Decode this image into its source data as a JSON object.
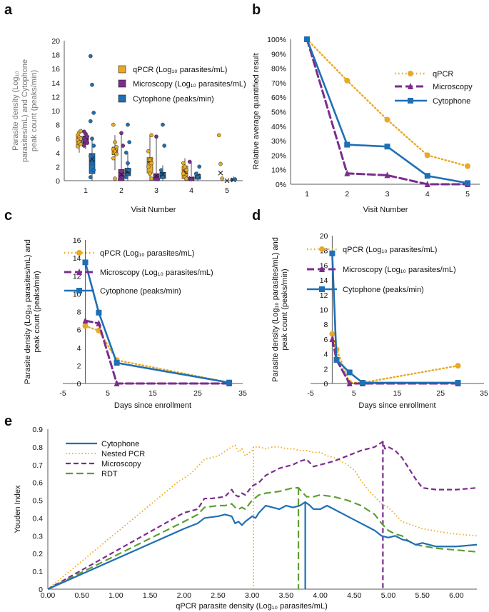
{
  "colors": {
    "qpcr": "#E8A925",
    "microscopy": "#7B2D8E",
    "cytophone": "#1F6FB5",
    "nested": "#F0A81E",
    "rdt": "#5E9E32",
    "axis": "#595959",
    "grid": "#cfcfcf"
  },
  "panels": {
    "a": "a",
    "b": "b",
    "c": "c",
    "d": "d",
    "e": "e"
  },
  "chart_data": [
    {
      "id": "a",
      "type": "scatter",
      "title": "",
      "xlabel": "Visit Number",
      "ylabel_lines": [
        "Parasite density (Log₁₀",
        "parasites/mL) and  Cytophone",
        "peak count (peaks/min)"
      ],
      "ylim": [
        0,
        20
      ],
      "yticks": [
        0,
        2,
        4,
        6,
        8,
        10,
        12,
        14,
        16,
        18,
        20
      ],
      "categories": [
        "1",
        "2",
        "3",
        "4",
        "5"
      ],
      "legend": [
        "qPCR (Log₁₀ parasites/mL)",
        "Microscopy (Log₁₀ parasites/mL)",
        "Cytophone (peaks/min)"
      ],
      "series": [
        {
          "name": "qPCR",
          "color": "qpcr",
          "box": [
            [
              5.0,
              5.6,
              6.3
            ],
            [
              3.7,
              4.3,
              4.8
            ],
            [
              1.1,
              2.7,
              3.3
            ],
            [
              0.3,
              1.0,
              2.1
            ],
            [
              0,
              0,
              0
            ]
          ],
          "whisker": [
            [
              4.0,
              7.1
            ],
            [
              1.5,
              6.5
            ],
            [
              0,
              6.5
            ],
            [
              0,
              3.2
            ],
            [
              0,
              0
            ]
          ],
          "mean": [
            5.9,
            4.4,
            2.8,
            1.3,
            1.1
          ],
          "points": [
            [
              1,
              6.5
            ],
            [
              1,
              6.2
            ],
            [
              1,
              6.0
            ],
            [
              1,
              5.8
            ],
            [
              1,
              5.5
            ],
            [
              1,
              5.2
            ],
            [
              1,
              4.9
            ],
            [
              1,
              6.9
            ],
            [
              1,
              7.1
            ],
            [
              2,
              8.0
            ],
            [
              2,
              5.5
            ],
            [
              2,
              4.8
            ],
            [
              2,
              4.5
            ],
            [
              2,
              4.2
            ],
            [
              2,
              3.8
            ],
            [
              2,
              3.2
            ],
            [
              2,
              0.3
            ],
            [
              3,
              6.5
            ],
            [
              3,
              4.2
            ],
            [
              3,
              3.0
            ],
            [
              3,
              2.5
            ],
            [
              3,
              2.0
            ],
            [
              3,
              1.0
            ],
            [
              3,
              0.3
            ],
            [
              4,
              2.5
            ],
            [
              4,
              2.0
            ],
            [
              4,
              1.5
            ],
            [
              4,
              1.0
            ],
            [
              4,
              0.5
            ],
            [
              4,
              0.3
            ],
            [
              5,
              6.5
            ],
            [
              5,
              2.4
            ],
            [
              5,
              0.3
            ]
          ]
        },
        {
          "name": "Microscopy",
          "color": "microscopy",
          "box": [
            [
              5.2,
              5.9,
              6.4
            ],
            [
              0,
              0.7,
              1.6
            ],
            [
              0,
              0.5,
              1.0
            ],
            [
              0,
              0,
              0.5
            ],
            [
              0,
              0,
              0
            ]
          ],
          "whisker": [
            [
              4.5,
              7.0
            ],
            [
              0,
              6.8
            ],
            [
              0,
              6.3
            ],
            [
              0,
              2.7
            ],
            [
              0,
              0
            ]
          ],
          "mean": [
            5.7,
            0.9,
            0.7,
            0.3,
            0
          ],
          "points": [
            [
              1,
              7.0
            ],
            [
              1,
              6.7
            ],
            [
              1,
              6.3
            ],
            [
              1,
              6.0
            ],
            [
              1,
              5.7
            ],
            [
              1,
              5.4
            ],
            [
              1,
              5.0
            ],
            [
              2,
              6.8
            ],
            [
              2,
              5.0
            ],
            [
              2,
              0.2
            ],
            [
              3,
              6.3
            ],
            [
              3,
              0.2
            ],
            [
              4,
              2.7
            ],
            [
              4,
              0.2
            ]
          ]
        },
        {
          "name": "Cytophone",
          "color": "cytophone",
          "box": [
            [
              1.0,
              2.8,
              3.9
            ],
            [
              0.7,
              1.2,
              1.8
            ],
            [
              0.3,
              0.7,
              1.2
            ],
            [
              0.2,
              0.5,
              0.9
            ],
            [
              0,
              0.1,
              0.3
            ]
          ],
          "whisker": [
            [
              0,
              6.0
            ],
            [
              0,
              3.9
            ],
            [
              0,
              2.2
            ],
            [
              0,
              1.3
            ],
            [
              0,
              0.6
            ]
          ],
          "mean": [
            3.1,
            1.2,
            0.9,
            0.7,
            0.1
          ],
          "points": [
            [
              1,
              17.8
            ],
            [
              1,
              13.7
            ],
            [
              1,
              9.7
            ],
            [
              1,
              8.5
            ],
            [
              1,
              6.0
            ],
            [
              1,
              5.0
            ],
            [
              1,
              3.5
            ],
            [
              1,
              2.5
            ],
            [
              1,
              1.5
            ],
            [
              1,
              0.5
            ],
            [
              2,
              8.0
            ],
            [
              2,
              5.5
            ],
            [
              2,
              4.0
            ],
            [
              2,
              2.5
            ],
            [
              2,
              1.5
            ],
            [
              2,
              0.5
            ],
            [
              3,
              8.0
            ],
            [
              3,
              5.0
            ],
            [
              3,
              1.5
            ],
            [
              3,
              0.5
            ],
            [
              4,
              2.0
            ],
            [
              4,
              1.0
            ],
            [
              4,
              0.5
            ],
            [
              5,
              0.2
            ]
          ]
        }
      ]
    },
    {
      "id": "b",
      "type": "line",
      "xlabel": "Visit Number",
      "ylabel": "Relative average quantified result",
      "x": [
        1,
        2,
        3,
        4,
        5
      ],
      "ylim": [
        0,
        100
      ],
      "yticks": [
        "0%",
        "10%",
        "20%",
        "30%",
        "40%",
        "50%",
        "60%",
        "70%",
        "80%",
        "90%",
        "100%"
      ],
      "series": [
        {
          "name": "qPCR",
          "color": "qpcr",
          "values": [
            100,
            71.5,
            44.5,
            20,
            12.5
          ]
        },
        {
          "name": "Microscopy",
          "color": "microscopy",
          "values": [
            100,
            7.5,
            6.2,
            0,
            0
          ]
        },
        {
          "name": "Cytophone",
          "color": "cytophone",
          "values": [
            100,
            27.3,
            26,
            5.8,
            0.8
          ]
        }
      ]
    },
    {
      "id": "c",
      "type": "line",
      "xlabel": "Days since enrollment",
      "ylabel_lines": [
        "Parasite density (Log₁₀ parasites/mL) and",
        "peak count (peaks/min)"
      ],
      "xlim": [
        -5,
        35
      ],
      "ylim": [
        0,
        16
      ],
      "xticks": [
        "-5",
        "5",
        "15",
        "25",
        "35"
      ],
      "yticks": [
        "0",
        "2",
        "4",
        "6",
        "8",
        "10",
        "12",
        "14",
        "16"
      ],
      "series": [
        {
          "name": "qPCR (Log₁₀ parasites/mL)",
          "color": "qpcr",
          "x": [
            0,
            3,
            7,
            32
          ],
          "values": [
            6.4,
            5.9,
            2.6,
            0.1
          ]
        },
        {
          "name": "Microscopy (Log₁₀ parasites/mL)",
          "color": "microscopy",
          "x": [
            0,
            3,
            7,
            32
          ],
          "values": [
            7.0,
            6.7,
            0,
            0
          ]
        },
        {
          "name": "Cytophone (peaks/min)",
          "color": "cytophone",
          "x": [
            0,
            3,
            7,
            32
          ],
          "values": [
            13.5,
            7.9,
            2.3,
            0.1
          ]
        }
      ]
    },
    {
      "id": "d",
      "type": "line",
      "xlabel": "Days since enrollment",
      "ylabel_lines": [
        "Parasite density (Log₁₀ parasites/mL) and",
        "peak count (peaks/min)"
      ],
      "xlim": [
        -5,
        35
      ],
      "ylim": [
        0,
        20
      ],
      "xticks": [
        "-5",
        "5",
        "15",
        "25",
        "35"
      ],
      "yticks": [
        "0",
        "2",
        "4",
        "6",
        "8",
        "10",
        "12",
        "14",
        "16",
        "18",
        "20"
      ],
      "series": [
        {
          "name": "qPCR (Log₁₀ parasites/mL)",
          "color": "qpcr",
          "x": [
            0,
            1,
            4,
            7,
            29
          ],
          "values": [
            6.7,
            4.6,
            0.1,
            0.1,
            2.4
          ]
        },
        {
          "name": "Microscopy (Log₁₀ parasites/mL)",
          "color": "microscopy",
          "x": [
            0,
            1,
            4,
            7,
            29
          ],
          "values": [
            6.0,
            3.2,
            0,
            0,
            0
          ]
        },
        {
          "name": "Cytophone (peaks/min)",
          "color": "cytophone",
          "x": [
            0,
            1,
            4,
            7,
            29
          ],
          "values": [
            17.6,
            3.2,
            1.5,
            0.1,
            0.1
          ]
        }
      ]
    },
    {
      "id": "e",
      "type": "line",
      "xlabel": "qPCR parasite density (Log₁₀ parasites/mL)",
      "ylabel": "Youden Index",
      "xlim": [
        0,
        6.3
      ],
      "ylim": [
        0,
        0.9
      ],
      "xticks": [
        "0.00",
        "0.50",
        "1.00",
        "1.50",
        "2.00",
        "2.50",
        "3.00",
        "3.50",
        "4.00",
        "4.50",
        "5.00",
        "5.50",
        "6.00"
      ],
      "yticks": [
        "0",
        "0.1",
        "0.2",
        "0.3",
        "0.4",
        "0.5",
        "0.6",
        "0.7",
        "0.8",
        "0.9"
      ],
      "series": [
        {
          "name": "Cytophone",
          "color": "cytophone",
          "style": "solid",
          "cutoff": 3.78,
          "x": [
            0,
            2,
            2.2,
            2.3,
            2.5,
            2.6,
            2.7,
            2.75,
            2.8,
            2.85,
            2.9,
            3.0,
            3.05,
            3.1,
            3.2,
            3.3,
            3.4,
            3.5,
            3.6,
            3.7,
            3.78,
            3.85,
            3.9,
            4.0,
            4.1,
            4.2,
            4.3,
            4.4,
            4.5,
            4.6,
            4.7,
            4.8,
            4.9,
            5.0,
            5.1,
            5.2,
            5.3,
            5.4,
            5.5,
            5.7,
            6.0,
            6.3
          ],
          "values": [
            0,
            0.34,
            0.37,
            0.4,
            0.41,
            0.42,
            0.41,
            0.37,
            0.38,
            0.36,
            0.38,
            0.41,
            0.4,
            0.43,
            0.47,
            0.46,
            0.45,
            0.47,
            0.46,
            0.47,
            0.49,
            0.47,
            0.45,
            0.45,
            0.47,
            0.45,
            0.43,
            0.41,
            0.39,
            0.37,
            0.35,
            0.33,
            0.3,
            0.29,
            0.3,
            0.28,
            0.27,
            0.25,
            0.26,
            0.24,
            0.24,
            0.25
          ]
        },
        {
          "name": "Nested PCR",
          "color": "nested",
          "style": "dotted",
          "cutoff": 3.02,
          "x": [
            0,
            1.9,
            2.1,
            2.3,
            2.5,
            2.7,
            2.75,
            2.8,
            2.85,
            2.9,
            3.0,
            3.02,
            3.1,
            3.2,
            3.3,
            3.4,
            3.5,
            3.6,
            3.7,
            3.8,
            3.9,
            4.0,
            4.1,
            4.2,
            4.3,
            4.4,
            4.5,
            4.6,
            4.7,
            4.8,
            4.9,
            5.0,
            5.1,
            5.2,
            5.5,
            5.8,
            6.0,
            6.3
          ],
          "values": [
            0,
            0.6,
            0.65,
            0.73,
            0.75,
            0.8,
            0.81,
            0.77,
            0.79,
            0.75,
            0.78,
            0.8,
            0.8,
            0.79,
            0.8,
            0.8,
            0.79,
            0.79,
            0.78,
            0.78,
            0.77,
            0.77,
            0.75,
            0.74,
            0.72,
            0.7,
            0.67,
            0.61,
            0.56,
            0.52,
            0.48,
            0.46,
            0.42,
            0.38,
            0.34,
            0.32,
            0.31,
            0.3
          ]
        },
        {
          "name": "Microscopy",
          "color": "microscopy",
          "style": "dashed",
          "cutoff": 4.92,
          "x": [
            0,
            2.0,
            2.2,
            2.3,
            2.4,
            2.6,
            2.7,
            2.75,
            2.8,
            2.85,
            2.9,
            3.0,
            3.1,
            3.2,
            3.4,
            3.6,
            3.7,
            3.8,
            3.85,
            3.9,
            4.0,
            4.2,
            4.4,
            4.6,
            4.8,
            4.92,
            4.95,
            5.0,
            5.1,
            5.2,
            5.3,
            5.4,
            5.5,
            5.7,
            6.0,
            6.3
          ],
          "values": [
            0,
            0.43,
            0.45,
            0.51,
            0.51,
            0.52,
            0.56,
            0.53,
            0.52,
            0.54,
            0.53,
            0.58,
            0.6,
            0.64,
            0.68,
            0.7,
            0.72,
            0.73,
            0.71,
            0.69,
            0.7,
            0.72,
            0.75,
            0.78,
            0.8,
            0.83,
            0.79,
            0.8,
            0.78,
            0.74,
            0.68,
            0.62,
            0.57,
            0.56,
            0.56,
            0.57
          ]
        },
        {
          "name": "RDT",
          "color": "rdt",
          "style": "longdash",
          "cutoff": 3.68,
          "x": [
            0,
            2.0,
            2.2,
            2.3,
            2.5,
            2.6,
            2.7,
            2.75,
            2.8,
            2.85,
            2.9,
            3.0,
            3.1,
            3.2,
            3.4,
            3.6,
            3.68,
            3.75,
            3.8,
            3.9,
            4.0,
            4.2,
            4.4,
            4.6,
            4.8,
            4.9,
            5.0,
            5.1,
            5.2,
            5.3,
            5.4,
            5.7,
            6.0,
            6.3
          ],
          "values": [
            0,
            0.38,
            0.42,
            0.46,
            0.47,
            0.47,
            0.48,
            0.46,
            0.45,
            0.46,
            0.45,
            0.5,
            0.53,
            0.54,
            0.55,
            0.57,
            0.57,
            0.54,
            0.52,
            0.52,
            0.53,
            0.52,
            0.5,
            0.47,
            0.42,
            0.37,
            0.33,
            0.31,
            0.3,
            0.27,
            0.25,
            0.23,
            0.22,
            0.21
          ]
        }
      ]
    }
  ]
}
